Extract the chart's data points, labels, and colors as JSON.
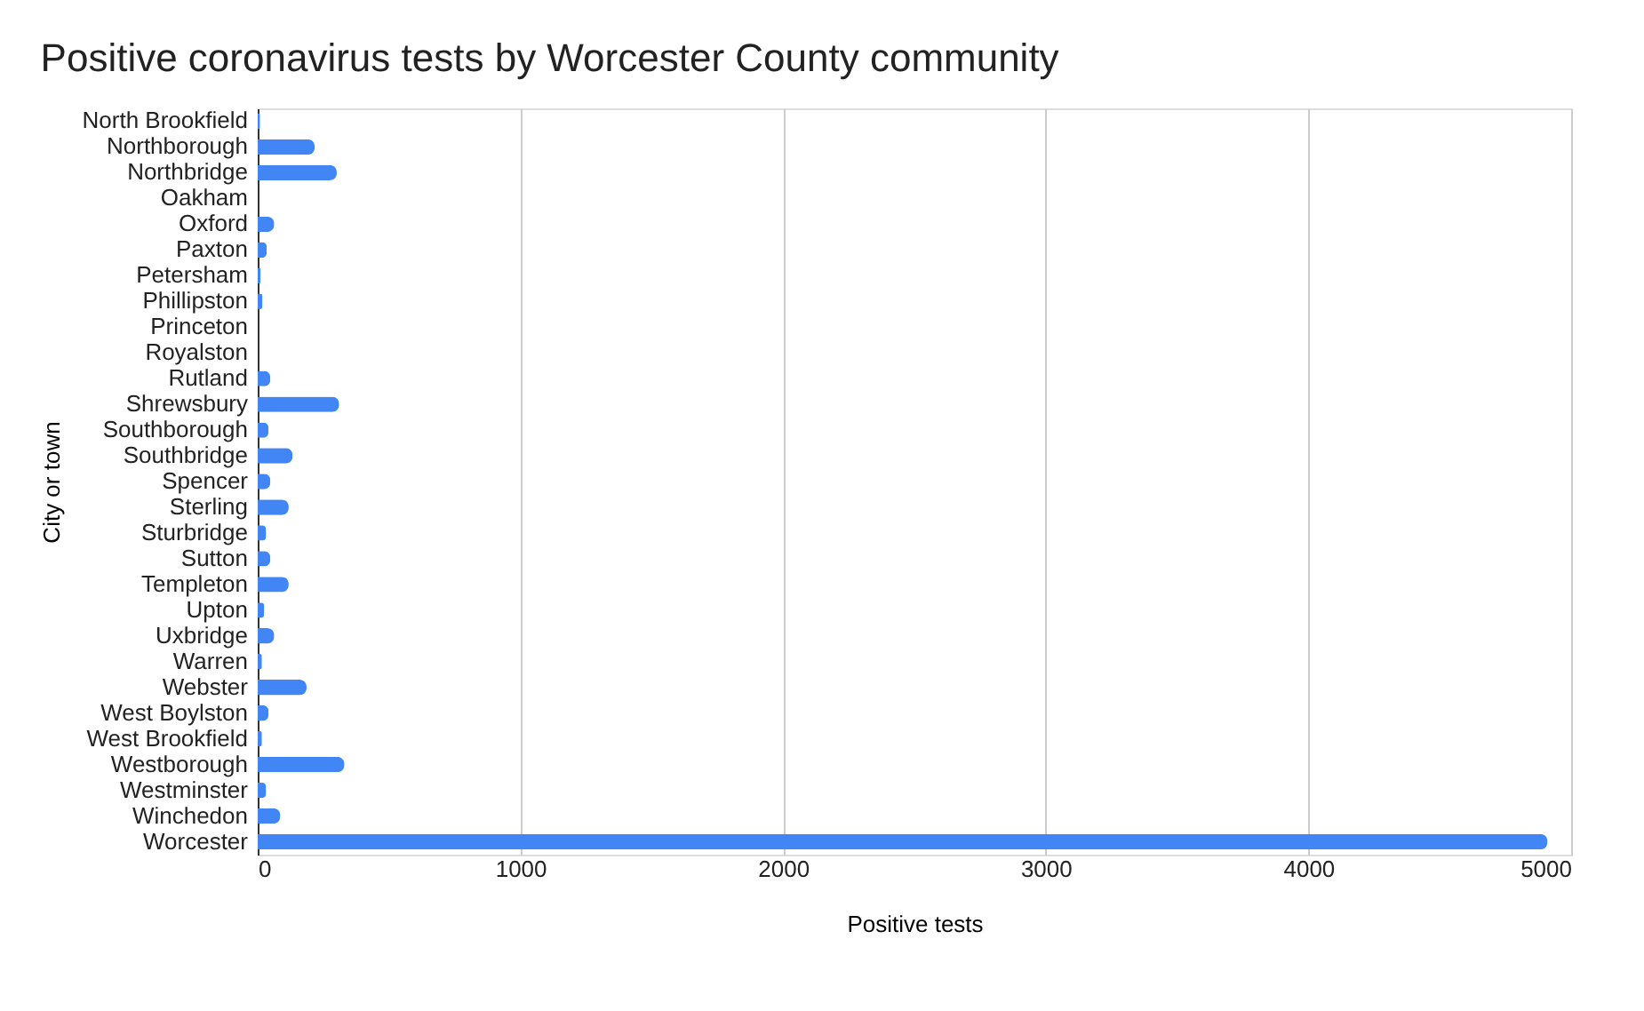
{
  "chart_data": {
    "type": "bar",
    "orientation": "horizontal",
    "title": "Positive coronavirus tests by Worcester County community",
    "xlabel": "Positive tests",
    "ylabel": "City or town",
    "categories": [
      "North Brookfield",
      "Northborough",
      "Northbridge",
      "Oakham",
      "Oxford",
      "Paxton",
      "Petersham",
      "Phillipston",
      "Princeton",
      "Royalston",
      "Rutland",
      "Shrewsbury",
      "Southborough",
      "Southbridge",
      "Spencer",
      "Sterling",
      "Sturbridge",
      "Sutton",
      "Templeton",
      "Upton",
      "Uxbridge",
      "Warren",
      "Webster",
      "West Boylston",
      "West Brookfield",
      "Westborough",
      "Westminster",
      "Winchedon",
      "Worcester"
    ],
    "values": [
      9,
      217,
      301,
      0,
      63,
      34,
      11,
      18,
      0,
      0,
      48,
      310,
      41,
      133,
      48,
      118,
      32,
      48,
      118,
      25,
      63,
      16,
      186,
      41,
      16,
      330,
      32,
      86,
      4910
    ],
    "color": "#4285f4",
    "xlim": [
      0,
      5000
    ],
    "xticks": [
      0,
      1000,
      2000,
      3000,
      4000,
      5000
    ],
    "grid": "x"
  }
}
